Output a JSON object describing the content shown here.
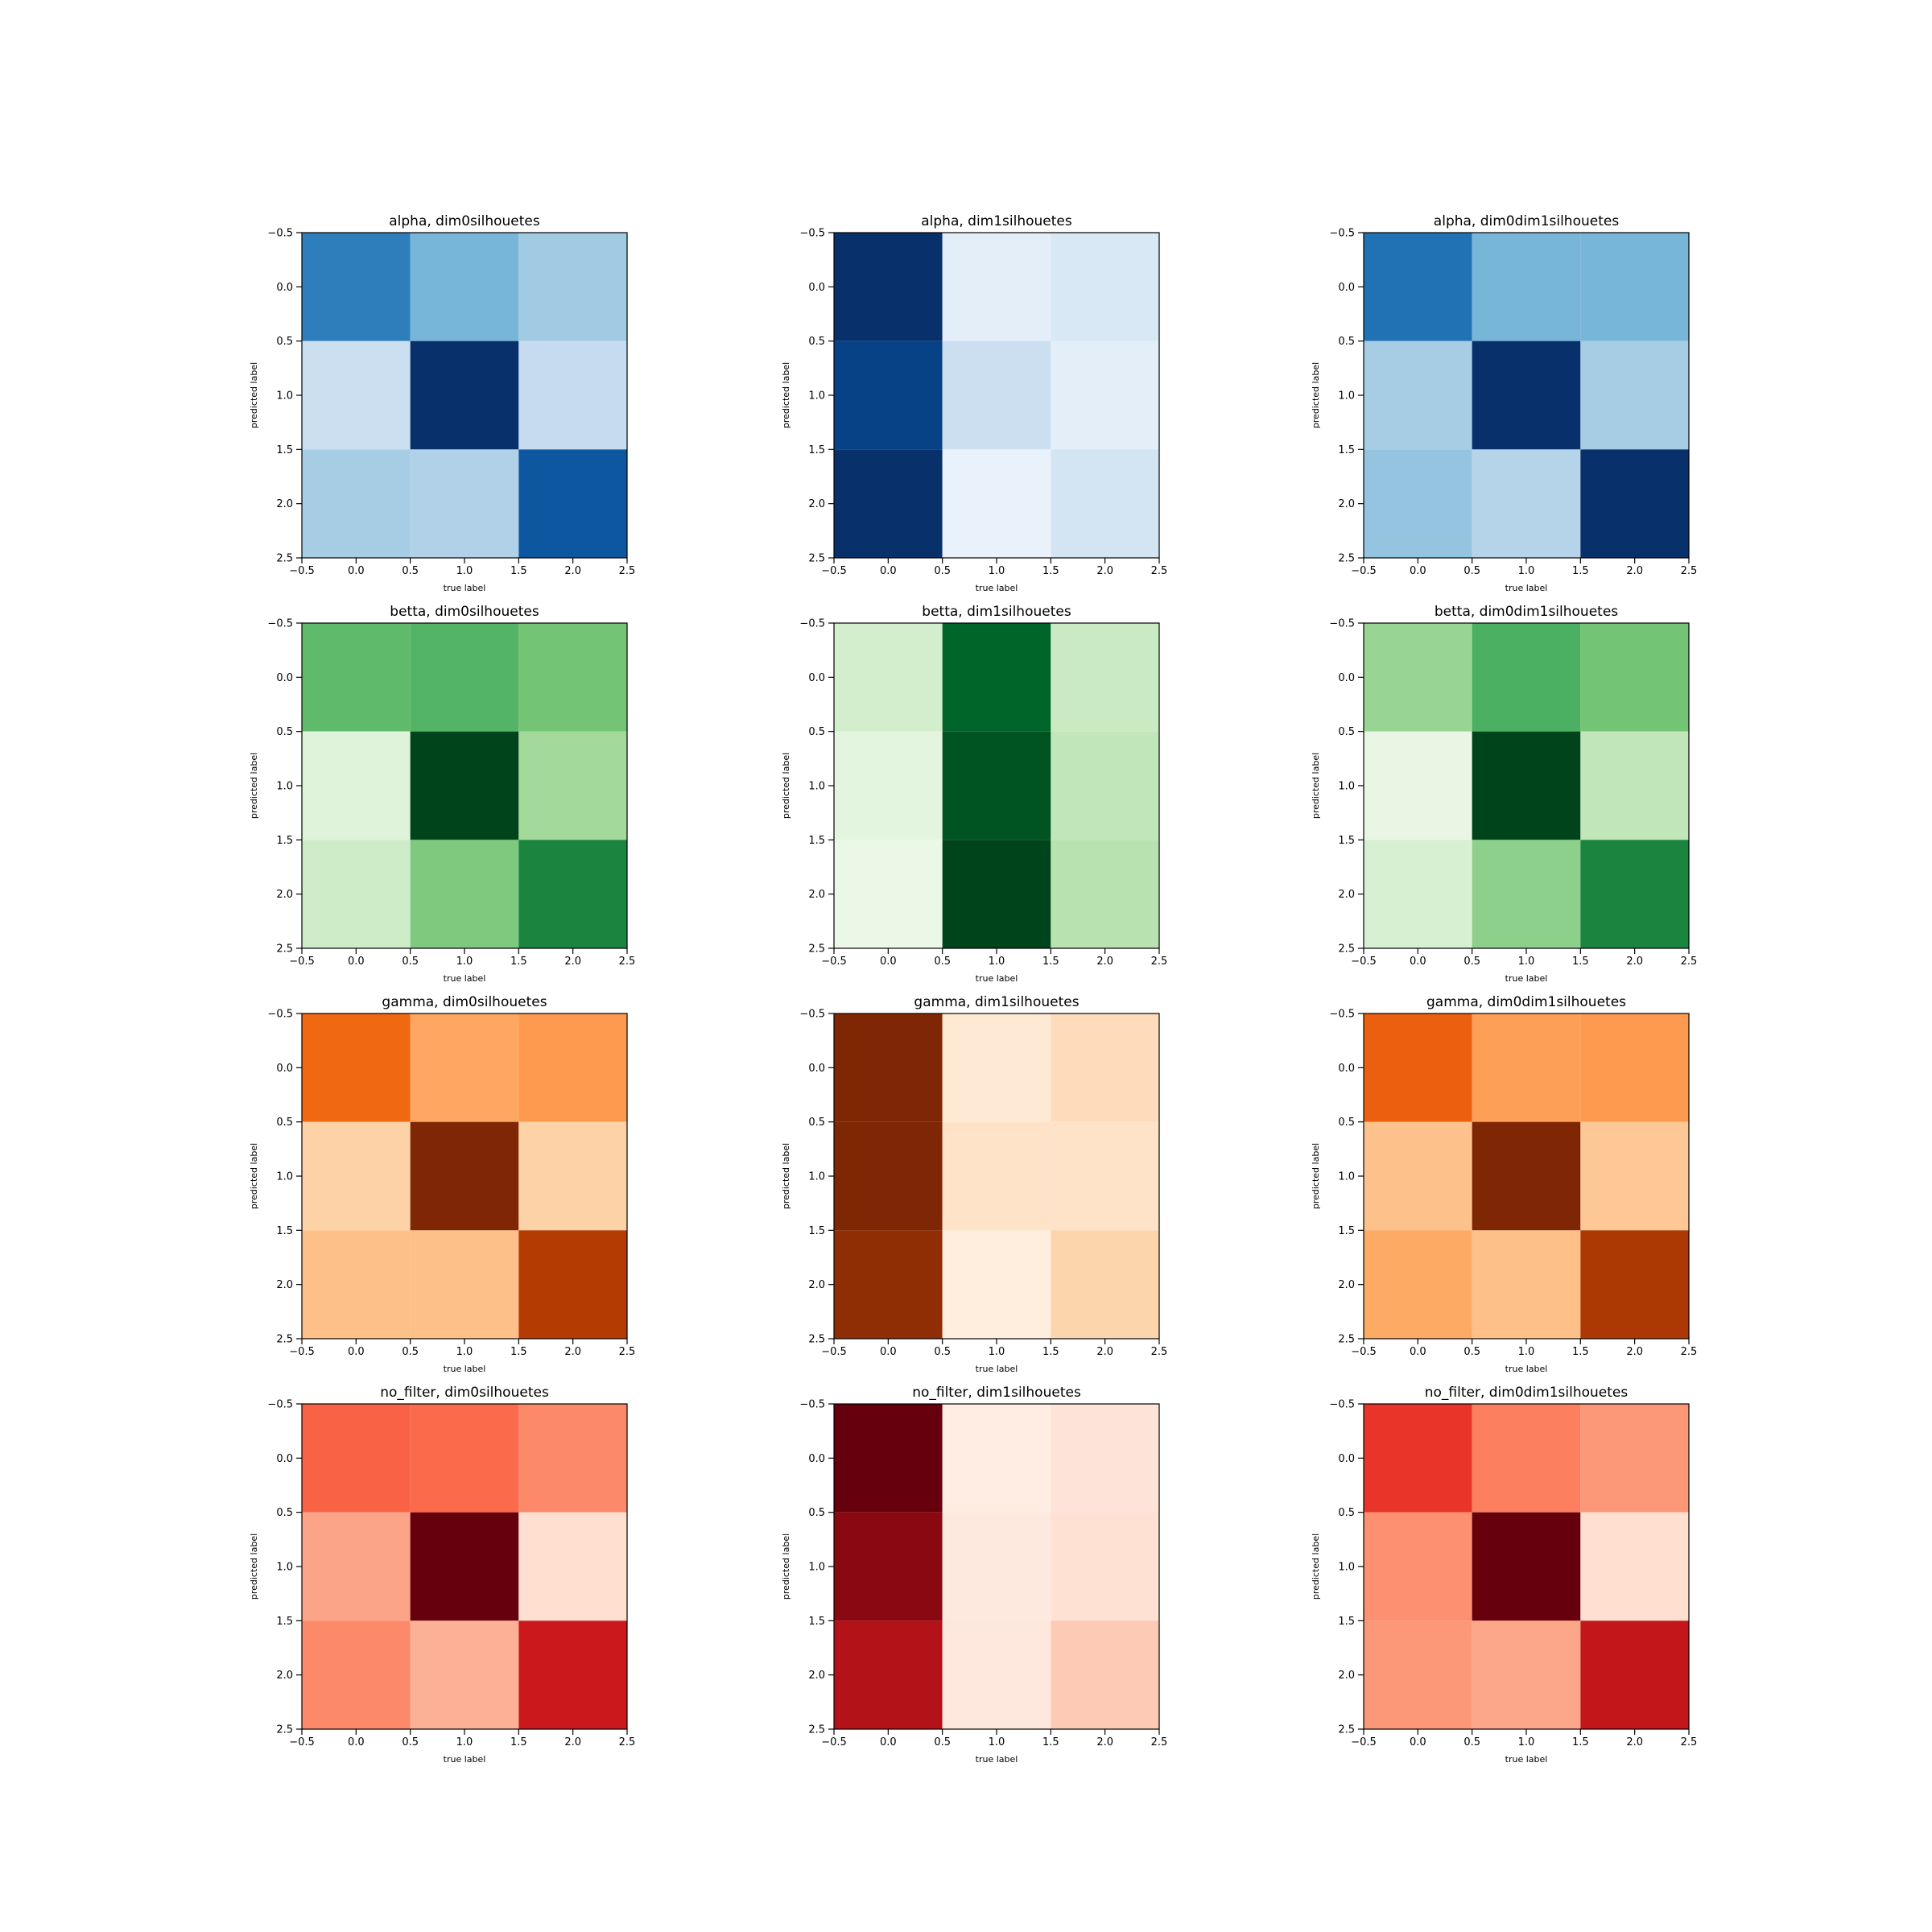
{
  "chart_data": {
    "type": "heatmap",
    "layout_rows": 4,
    "layout_cols": 3,
    "xlabel": "true label",
    "ylabel": "predicted label",
    "xticks": [
      "−0.5",
      "0.0",
      "0.5",
      "1.0",
      "1.5",
      "2.0",
      "2.5"
    ],
    "yticks": [
      "−0.5",
      "0.0",
      "0.5",
      "1.0",
      "1.5",
      "2.0",
      "2.5"
    ],
    "xlim": [
      -0.5,
      2.5
    ],
    "ylim": [
      2.5,
      -0.5
    ],
    "colormaps": {
      "Blues": [
        "#f7fbff",
        "#deebf7",
        "#c6dbef",
        "#9ecae1",
        "#6baed6",
        "#4292c6",
        "#2171b5",
        "#08519c",
        "#08306b"
      ],
      "Greens": [
        "#f7fcf5",
        "#e5f5e0",
        "#c7e9c0",
        "#a1d99b",
        "#74c476",
        "#41ab5d",
        "#238b45",
        "#006d2c",
        "#00441b"
      ],
      "Oranges": [
        "#fff5eb",
        "#fee6ce",
        "#fdd0a2",
        "#fdae6b",
        "#fd8d3c",
        "#f16913",
        "#d94801",
        "#a63603",
        "#7f2704"
      ],
      "Reds": [
        "#fff5f0",
        "#fee0d2",
        "#fcbba1",
        "#fc9272",
        "#fb6a4a",
        "#ef3b2c",
        "#cb181d",
        "#a50f15",
        "#67000d"
      ]
    },
    "panels": [
      {
        "title": "alpha, dim0silhouetes",
        "cmap": "Blues",
        "values": [
          [
            0.7,
            0.47,
            0.37
          ],
          [
            0.22,
            1.0,
            0.25
          ],
          [
            0.35,
            0.32,
            0.85
          ]
        ]
      },
      {
        "title": "alpha, dim1silhouetes",
        "cmap": "Blues",
        "values": [
          [
            1.0,
            0.1,
            0.15
          ],
          [
            0.93,
            0.22,
            0.1
          ],
          [
            1.0,
            0.07,
            0.18
          ]
        ]
      },
      {
        "title": "alpha, dim0dim1silhouetes",
        "cmap": "Blues",
        "values": [
          [
            0.75,
            0.47,
            0.47
          ],
          [
            0.35,
            1.0,
            0.35
          ],
          [
            0.4,
            0.3,
            1.0
          ]
        ]
      },
      {
        "title": "betta, dim0silhouetes",
        "cmap": "Greens",
        "values": [
          [
            0.55,
            0.58,
            0.5
          ],
          [
            0.15,
            1.0,
            0.37
          ],
          [
            0.22,
            0.47,
            0.78
          ]
        ]
      },
      {
        "title": "betta, dim1silhouetes",
        "cmap": "Greens",
        "values": [
          [
            0.2,
            0.9,
            0.24
          ],
          [
            0.13,
            0.95,
            0.27
          ],
          [
            0.08,
            1.0,
            0.3
          ]
        ]
      },
      {
        "title": "betta, dim0dim1silhouetes",
        "cmap": "Greens",
        "values": [
          [
            0.4,
            0.6,
            0.5
          ],
          [
            0.1,
            1.0,
            0.27
          ],
          [
            0.18,
            0.43,
            0.78
          ]
        ]
      },
      {
        "title": "gamma, dim0silhouetes",
        "cmap": "Oranges",
        "values": [
          [
            0.63,
            0.4,
            0.45
          ],
          [
            0.24,
            1.0,
            0.24
          ],
          [
            0.31,
            0.31,
            0.84
          ]
        ]
      },
      {
        "title": "gamma, dim1silhouetes",
        "cmap": "Oranges",
        "values": [
          [
            1.0,
            0.1,
            0.18
          ],
          [
            1.0,
            0.14,
            0.14
          ],
          [
            0.95,
            0.06,
            0.22
          ]
        ]
      },
      {
        "title": "gamma, dim0dim1silhouetes",
        "cmap": "Oranges",
        "values": [
          [
            0.66,
            0.43,
            0.45
          ],
          [
            0.3,
            1.0,
            0.28
          ],
          [
            0.39,
            0.31,
            0.86
          ]
        ]
      },
      {
        "title": "no_filter, dim0silhouetes",
        "cmap": "Reds",
        "values": [
          [
            0.52,
            0.5,
            0.4
          ],
          [
            0.32,
            1.0,
            0.13
          ],
          [
            0.4,
            0.28,
            0.75
          ]
        ]
      },
      {
        "title": "no_filter, dim1silhouetes",
        "cmap": "Reds",
        "values": [
          [
            1.0,
            0.05,
            0.1
          ],
          [
            0.93,
            0.07,
            0.12
          ],
          [
            0.83,
            0.08,
            0.2
          ]
        ]
      },
      {
        "title": "no_filter, dim0dim1silhouetes",
        "cmap": "Reds",
        "values": [
          [
            0.65,
            0.43,
            0.36
          ],
          [
            0.38,
            1.0,
            0.13
          ],
          [
            0.36,
            0.31,
            0.78
          ]
        ]
      }
    ]
  }
}
